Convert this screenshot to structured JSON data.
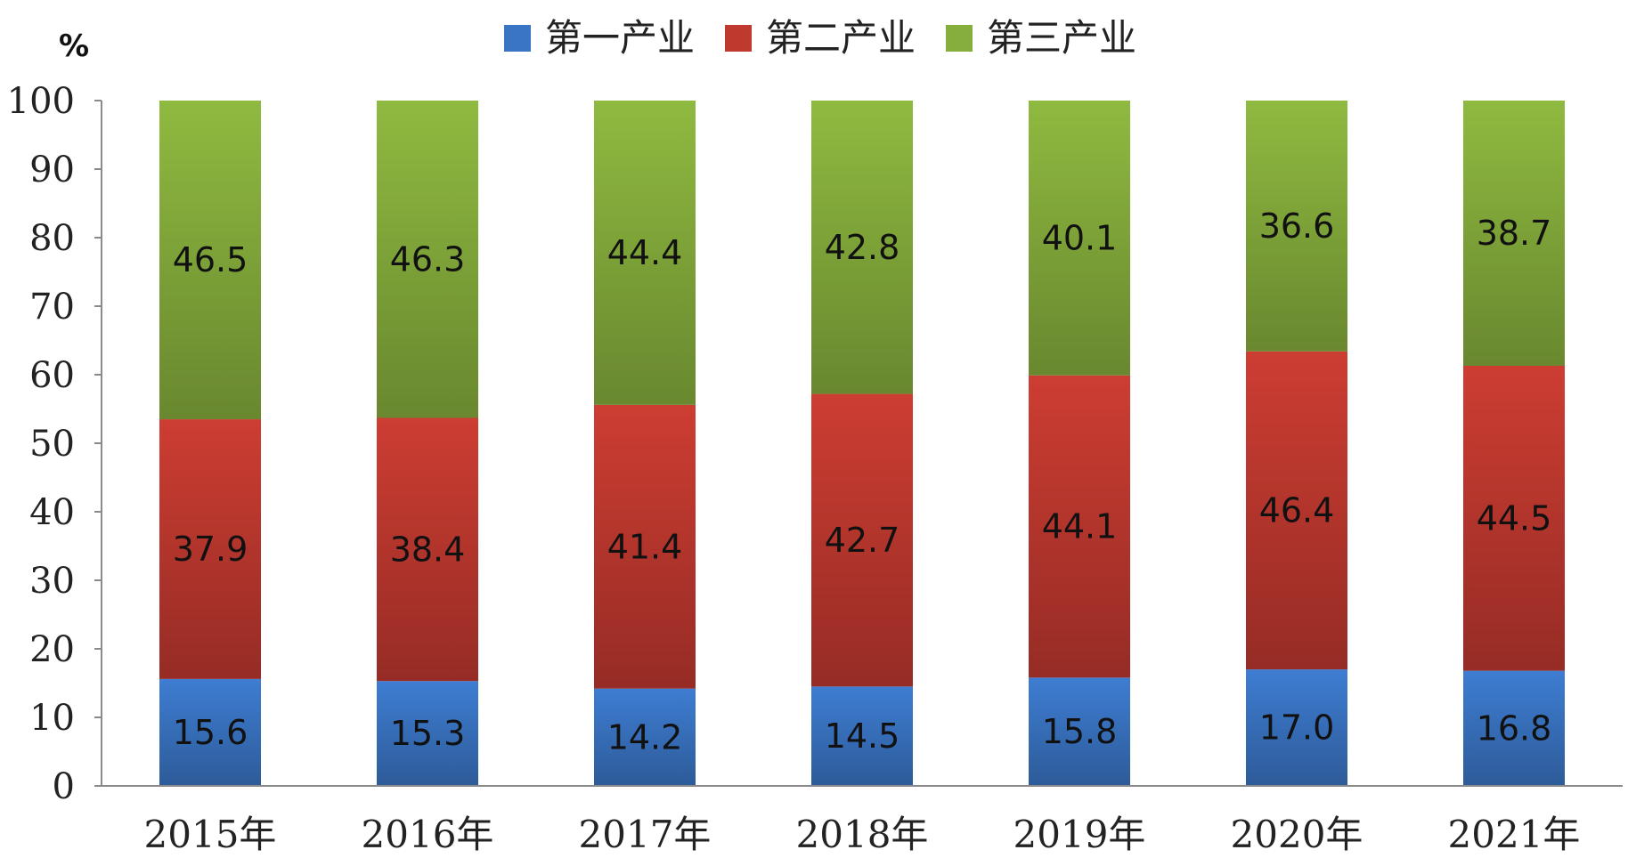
{
  "chart_data": {
    "type": "bar",
    "stacked": true,
    "unit": "%",
    "categories": [
      "2015年",
      "2016年",
      "2017年",
      "2018年",
      "2019年",
      "2020年",
      "2021年"
    ],
    "series": [
      {
        "name": "第一产业",
        "color": "#3A75C4",
        "values": [
          15.6,
          15.3,
          14.2,
          14.5,
          15.8,
          17.0,
          16.8
        ]
      },
      {
        "name": "第二产业",
        "color": "#C0392F",
        "values": [
          37.9,
          38.4,
          41.4,
          42.7,
          44.1,
          46.4,
          44.5
        ]
      },
      {
        "name": "第三产业",
        "color": "#86AE3C",
        "values": [
          46.5,
          46.3,
          44.4,
          42.8,
          40.1,
          36.6,
          38.7
        ]
      }
    ],
    "yticks": [
      0,
      10,
      20,
      30,
      40,
      50,
      60,
      70,
      80,
      90,
      100
    ],
    "ylim": [
      0,
      100
    ],
    "grid": false,
    "legend": "top-center"
  }
}
